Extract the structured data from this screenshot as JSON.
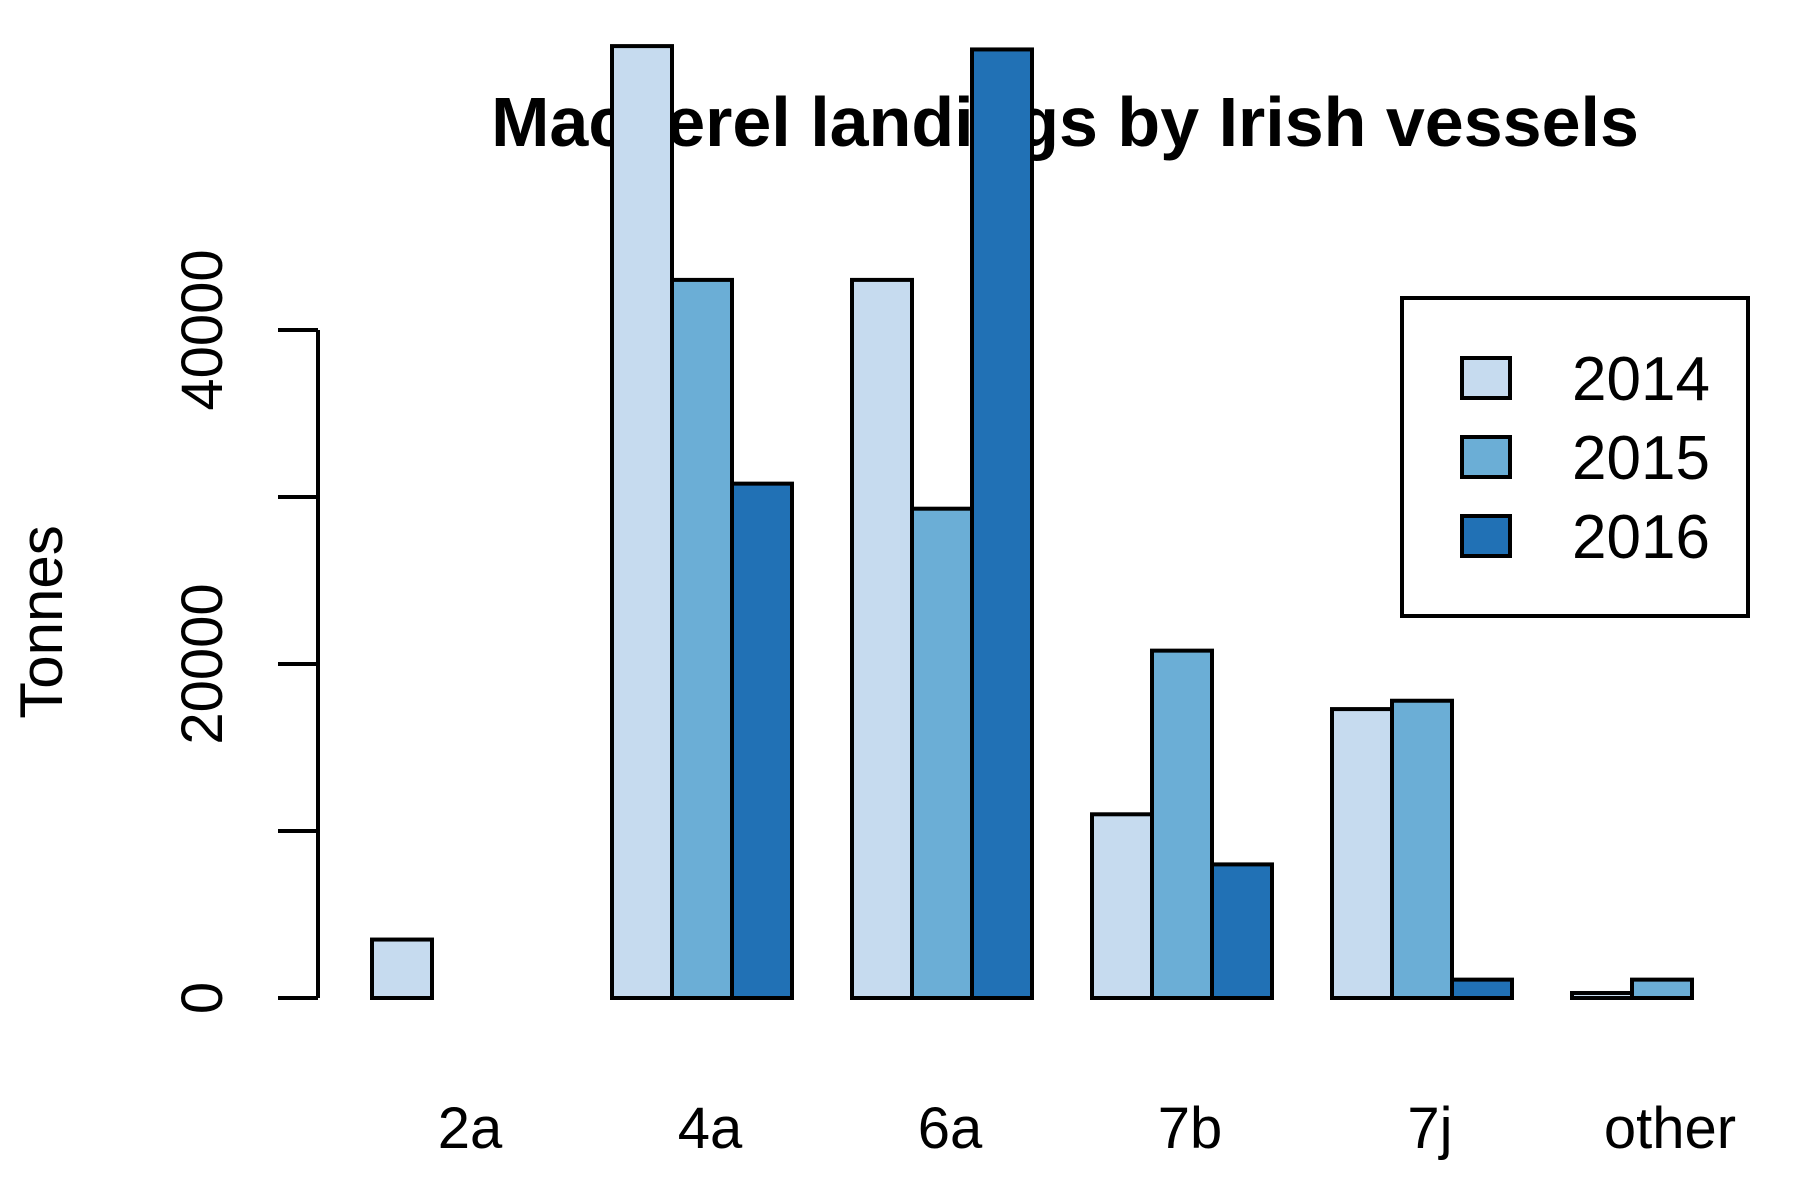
{
  "chart_data": {
    "type": "bar",
    "title": "Mackerel landings by Irish vessels",
    "xlabel": "",
    "ylabel": "Tonnes",
    "categories": [
      "2a",
      "4a",
      "6a",
      "7b",
      "7j",
      "other"
    ],
    "series": [
      {
        "name": "2014",
        "color": "#c6dbef",
        "values": [
          3500,
          57000,
          43000,
          11000,
          17300,
          300
        ]
      },
      {
        "name": "2015",
        "color": "#6baed6",
        "values": [
          0,
          43000,
          29300,
          20800,
          17800,
          1100
        ]
      },
      {
        "name": "2016",
        "color": "#2171b5",
        "values": [
          0,
          30800,
          56800,
          8000,
          1100,
          0
        ]
      }
    ],
    "ylim": [
      0,
      57000
    ],
    "y_ticks": [
      0,
      10000,
      20000,
      30000,
      40000
    ],
    "y_tick_labels": [
      "0",
      "",
      "20000",
      "",
      "40000"
    ],
    "grid": false,
    "legend_position": "top-right",
    "legend_entries": [
      "2014",
      "2015",
      "2016"
    ]
  }
}
